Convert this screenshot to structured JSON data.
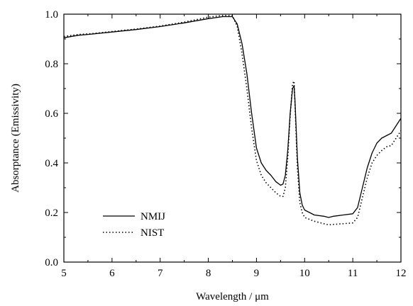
{
  "chart_data": {
    "type": "line",
    "title": "",
    "xlabel": "Wavelength / μm",
    "ylabel": "Absorptance (Emissivity)",
    "xlim": [
      5,
      12
    ],
    "ylim": [
      0.0,
      1.0
    ],
    "x_ticks": [
      5,
      6,
      7,
      8,
      9,
      10,
      11,
      12
    ],
    "x_tick_labels": [
      "5",
      "6",
      "7",
      "8",
      "9",
      "10",
      "11",
      "12"
    ],
    "y_ticks": [
      0.0,
      0.2,
      0.4,
      0.6,
      0.8,
      1.0
    ],
    "y_tick_labels": [
      "0.0",
      "0.2",
      "0.4",
      "0.6",
      "0.8",
      "1.0"
    ],
    "grid": false,
    "legend_position": "bottom-left",
    "series": [
      {
        "name": "NMIJ",
        "style": "solid",
        "color": "#000000",
        "x": [
          5.0,
          5.3,
          5.6,
          6.0,
          6.5,
          7.0,
          7.5,
          8.0,
          8.3,
          8.5,
          8.6,
          8.7,
          8.8,
          8.9,
          9.0,
          9.1,
          9.2,
          9.3,
          9.4,
          9.5,
          9.55,
          9.6,
          9.65,
          9.7,
          9.75,
          9.78,
          9.8,
          9.85,
          9.9,
          9.95,
          10.0,
          10.2,
          10.4,
          10.5,
          10.6,
          10.8,
          11.0,
          11.1,
          11.2,
          11.3,
          11.4,
          11.5,
          11.6,
          11.7,
          11.8,
          11.9,
          12.0
        ],
        "y": [
          0.905,
          0.915,
          0.92,
          0.928,
          0.938,
          0.95,
          0.965,
          0.982,
          0.99,
          0.99,
          0.96,
          0.88,
          0.76,
          0.6,
          0.46,
          0.4,
          0.37,
          0.35,
          0.325,
          0.31,
          0.315,
          0.35,
          0.45,
          0.6,
          0.7,
          0.712,
          0.65,
          0.42,
          0.28,
          0.23,
          0.21,
          0.19,
          0.185,
          0.18,
          0.185,
          0.19,
          0.195,
          0.22,
          0.3,
          0.38,
          0.44,
          0.48,
          0.5,
          0.51,
          0.52,
          0.55,
          0.58
        ]
      },
      {
        "name": "NIST",
        "style": "dotted",
        "color": "#000000",
        "x": [
          5.0,
          5.3,
          5.6,
          6.0,
          6.5,
          7.0,
          7.5,
          8.0,
          8.3,
          8.5,
          8.6,
          8.7,
          8.8,
          8.9,
          9.0,
          9.1,
          9.2,
          9.3,
          9.4,
          9.5,
          9.55,
          9.6,
          9.65,
          9.7,
          9.75,
          9.78,
          9.8,
          9.85,
          9.9,
          9.95,
          10.0,
          10.2,
          10.4,
          10.5,
          10.6,
          10.8,
          11.0,
          11.1,
          11.2,
          11.3,
          11.4,
          11.5,
          11.6,
          11.7,
          11.8,
          11.9,
          12.0
        ],
        "y": [
          0.91,
          0.918,
          0.922,
          0.93,
          0.94,
          0.952,
          0.968,
          0.988,
          0.995,
          0.995,
          0.95,
          0.84,
          0.7,
          0.54,
          0.41,
          0.35,
          0.32,
          0.3,
          0.28,
          0.265,
          0.265,
          0.3,
          0.42,
          0.59,
          0.72,
          0.73,
          0.64,
          0.38,
          0.24,
          0.2,
          0.18,
          0.165,
          0.155,
          0.15,
          0.152,
          0.155,
          0.158,
          0.18,
          0.26,
          0.34,
          0.4,
          0.43,
          0.45,
          0.465,
          0.47,
          0.5,
          0.53
        ]
      }
    ]
  }
}
